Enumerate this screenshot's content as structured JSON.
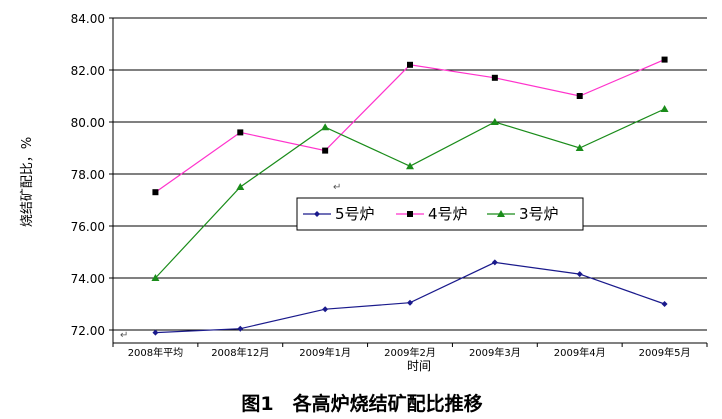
{
  "caption": "图1　各高炉烧结矿配比推移",
  "para_mark": "↵",
  "chart_data": {
    "type": "line",
    "title": "",
    "xlabel": "时间",
    "ylabel": "烧结矿配比，%",
    "ylim": [
      71.5,
      84.0
    ],
    "yticks": [
      "84.00",
      "82.00",
      "80.00",
      "78.00",
      "76.00",
      "74.00",
      "72.00"
    ],
    "ytick_values": [
      84,
      82,
      80,
      78,
      76,
      74,
      72
    ],
    "grid": true,
    "legend_position": "center",
    "categories": [
      "2008年平均",
      "2008年12月",
      "2009年1月",
      "2009年2月",
      "2009年3月",
      "2009年4月",
      "2009年5月"
    ],
    "series": [
      {
        "name": "5号炉",
        "color": "#1a1a8c",
        "marker": "diamond",
        "values": [
          71.9,
          72.05,
          72.8,
          73.05,
          74.6,
          74.15,
          73.0
        ]
      },
      {
        "name": "4号炉",
        "color": "#ff33cc",
        "marker": "square",
        "values": [
          77.3,
          79.6,
          78.9,
          82.2,
          81.7,
          81.0,
          82.4
        ]
      },
      {
        "name": "3号炉",
        "color": "#1a8c1a",
        "marker": "triangle",
        "values": [
          74.0,
          77.5,
          79.8,
          78.3,
          80.0,
          79.0,
          80.5
        ]
      }
    ]
  }
}
